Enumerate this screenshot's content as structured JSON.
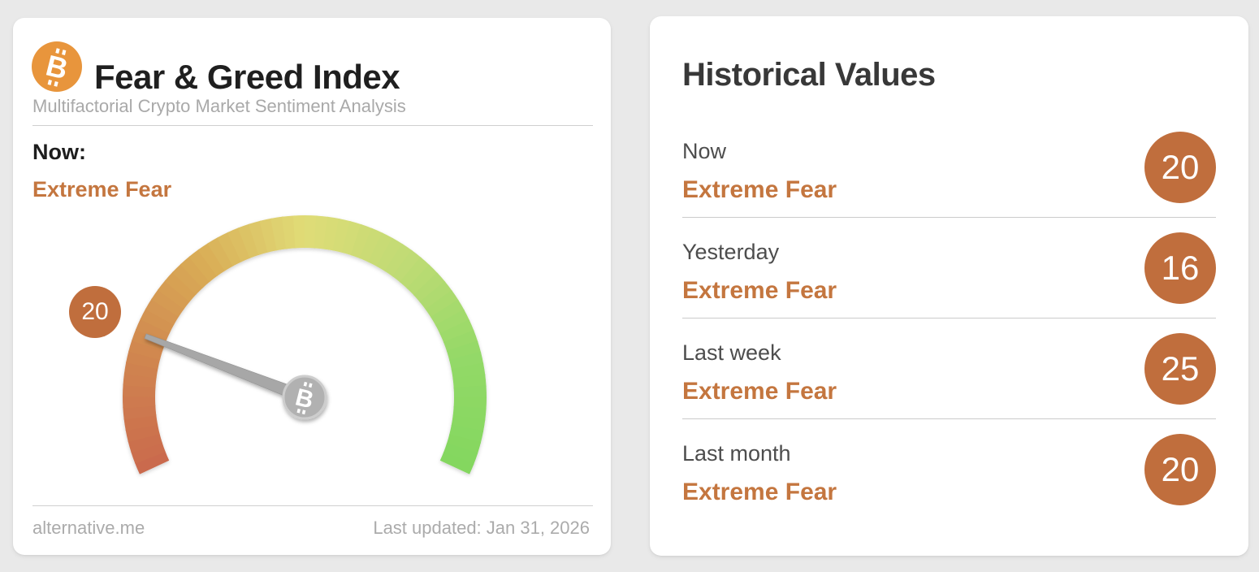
{
  "gauge_card": {
    "title": "Fear & Greed Index",
    "subtitle": "Multifactorial Crypto Market Sentiment Analysis",
    "now_label": "Now:",
    "now_classification": "Extreme Fear",
    "footer_left": "alternative.me",
    "footer_right": "Last updated: Jan 31, 2026"
  },
  "chart_data": {
    "type": "gauge",
    "title": "Fear & Greed Index",
    "value": 20,
    "min": 0,
    "max": 100,
    "classification": "Extreme Fear",
    "start_angle_deg": 205,
    "end_angle_deg": -25,
    "color_stops": [
      "#ca6a4e",
      "#d0854f",
      "#d9ab55",
      "#e0dc77",
      "#bedb74",
      "#93d967",
      "#83d75f"
    ],
    "needle_color": "#a7a7a7",
    "hub_color": "#b1b1b1",
    "hub_ring_color": "#cdcdcd",
    "hub_symbol": "bitcoin"
  },
  "historical_card": {
    "title": "Historical Values",
    "rows": [
      {
        "label": "Now",
        "classification": "Extreme Fear",
        "value": "20"
      },
      {
        "label": "Yesterday",
        "classification": "Extreme Fear",
        "value": "16"
      },
      {
        "label": "Last week",
        "classification": "Extreme Fear",
        "value": "25"
      },
      {
        "label": "Last month",
        "classification": "Extreme Fear",
        "value": "20"
      }
    ]
  },
  "colors": {
    "accent_orange": "#c4763f",
    "badge_brown": "#c06e3d",
    "logo_orange": "#e8953c",
    "page_background": "#e9e9e9"
  }
}
